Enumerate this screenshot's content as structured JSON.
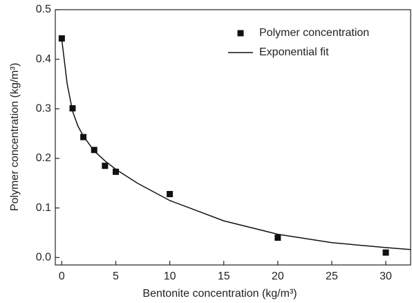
{
  "chart_data": {
    "type": "scatter",
    "xlabel": "Bentonite concentration (kg/m³)",
    "ylabel": "Polymer concentration (kg/m³)",
    "xlim": [
      -0.6,
      32.3
    ],
    "ylim": [
      -0.015,
      0.5
    ],
    "xticks": [
      0,
      5,
      10,
      15,
      20,
      25,
      30
    ],
    "yticks": [
      {
        "value": 0,
        "label": "0.0"
      },
      0.1,
      0.2,
      0.3,
      0.4,
      0.5
    ],
    "legend": "upper right",
    "series": [
      {
        "name": "Polymer concentration",
        "type": "scatter",
        "color": "#111111",
        "x": [
          0,
          1,
          2,
          3,
          4,
          5,
          10,
          20,
          30
        ],
        "values": [
          0.442,
          0.301,
          0.243,
          0.217,
          0.185,
          0.173,
          0.128,
          0.04,
          0.01
        ]
      },
      {
        "name": "Exponential fit",
        "type": "line",
        "color": "#111111",
        "x": [
          0,
          0.5,
          1,
          1.5,
          2,
          3,
          4,
          5,
          7,
          10,
          15,
          20,
          25,
          30,
          32.3
        ],
        "values": [
          0.44,
          0.35,
          0.295,
          0.265,
          0.245,
          0.215,
          0.195,
          0.178,
          0.15,
          0.115,
          0.074,
          0.047,
          0.03,
          0.02,
          0.016
        ]
      }
    ]
  }
}
